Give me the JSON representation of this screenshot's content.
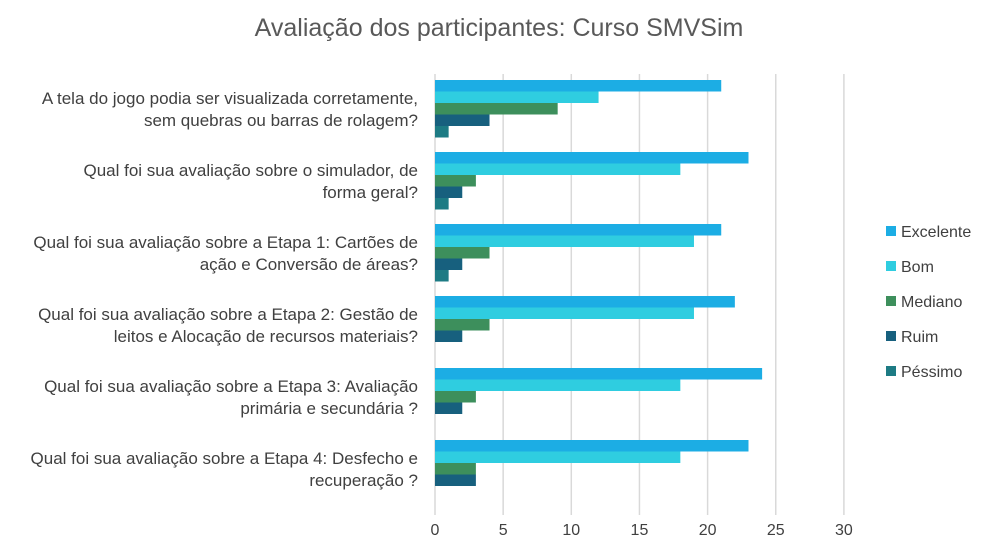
{
  "chart_data": {
    "type": "bar",
    "orientation": "horizontal",
    "title": "Avaliação dos participantes: Curso SMVSim",
    "categories": [
      [
        "A tela do jogo podia ser visualizada corretamente,",
        "sem quebras ou barras de rolagem?"
      ],
      [
        "Qual foi sua avaliação sobre o simulador,  de",
        "forma geral?"
      ],
      [
        "Qual foi sua avaliação sobre a Etapa 1: Cartões de",
        "ação e Conversão de áreas?"
      ],
      [
        "Qual foi sua avaliação sobre a Etapa 2: Gestão de",
        "leitos e Alocação de recursos materiais?"
      ],
      [
        "Qual foi sua avaliação sobre a Etapa 3: Avaliação",
        "primária e secundária ?"
      ],
      [
        "Qual foi sua avaliação sobre a Etapa 4: Desfecho e",
        "recuperação ?"
      ]
    ],
    "series": [
      {
        "name": "Excelente",
        "color": "#1CADE4",
        "values": [
          21,
          23,
          21,
          22,
          24,
          23
        ]
      },
      {
        "name": "Bom",
        "color": "#2FCDE0",
        "values": [
          12,
          18,
          19,
          19,
          18,
          18
        ]
      },
      {
        "name": "Mediano",
        "color": "#3D8F5C",
        "values": [
          9,
          3,
          4,
          4,
          3,
          3
        ]
      },
      {
        "name": "Ruim",
        "color": "#17607E",
        "values": [
          4,
          2,
          2,
          2,
          2,
          3
        ]
      },
      {
        "name": "Péssimo",
        "color": "#1D7B84",
        "values": [
          1,
          1,
          1,
          0,
          0,
          0
        ]
      }
    ],
    "xlim": [
      0,
      30
    ],
    "xticks": [
      0,
      5,
      10,
      15,
      20,
      25,
      30
    ],
    "grid": true,
    "legend": "right"
  }
}
